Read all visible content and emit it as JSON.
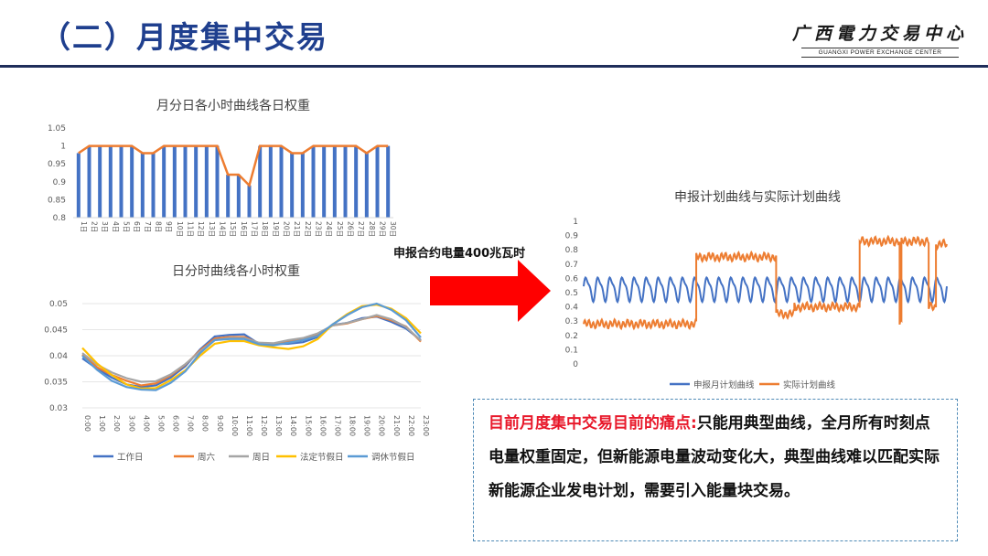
{
  "header": {
    "title": "（二）月度集中交易",
    "logo_cn": "广西電力交易中心",
    "logo_en": "GUANGXI POWER EXCHANGE CENTER"
  },
  "arrow_label": "申报合约电量400兆瓦时",
  "callout": {
    "highlight": "目前月度集中交易目前的痛点:",
    "body": "只能用典型曲线，全月所有时刻点电量权重固定，但新能源电量波动变化大，典型曲线难以匹配实际新能源企业发电计划，需要引入能量块交易。"
  },
  "colors": {
    "blue": "#4472c4",
    "orange": "#ed7d31",
    "gray": "#a5a5a5",
    "yellow": "#ffc000",
    "lightblue": "#5b9bd5",
    "red": "#ff0000",
    "title_blue": "#1f3f8e"
  },
  "chart_data": [
    {
      "type": "bar",
      "title": "月分日各小时曲线各日权重",
      "categories": [
        "1日",
        "2日",
        "3日",
        "4日",
        "5日",
        "6日",
        "7日",
        "8日",
        "9日",
        "10日",
        "11日",
        "12日",
        "13日",
        "14日",
        "15日",
        "16日",
        "17日",
        "18日",
        "19日",
        "20日",
        "21日",
        "22日",
        "23日",
        "24日",
        "25日",
        "26日",
        "27日",
        "28日",
        "29日",
        "30日"
      ],
      "values": [
        0.98,
        1,
        1,
        1,
        1,
        1,
        0.98,
        0.98,
        1,
        1,
        1,
        1,
        1,
        1,
        0.92,
        0.92,
        0.89,
        1,
        1,
        1,
        0.98,
        0.98,
        1,
        1,
        1,
        1,
        1,
        0.98,
        1,
        1
      ],
      "line_overlay": true,
      "ylim": [
        0.8,
        1.05
      ],
      "yticks": [
        "0.8",
        "0.85",
        "0.9",
        "0.95",
        "1",
        "1.05"
      ]
    },
    {
      "type": "line",
      "title": "日分时曲线各小时权重",
      "x": [
        "0:00",
        "1:00",
        "2:00",
        "3:00",
        "4:00",
        "5:00",
        "6:00",
        "7:00",
        "8:00",
        "9:00",
        "10:00",
        "11:00",
        "12:00",
        "13:00",
        "14:00",
        "15:00",
        "16:00",
        "17:00",
        "18:00",
        "19:00",
        "20:00",
        "21:00",
        "22:00",
        "23:00"
      ],
      "ylim": [
        0.03,
        0.05
      ],
      "yticks": [
        "0.03",
        "0.035",
        "0.04",
        "0.045",
        "0.05"
      ],
      "legend": "bottom",
      "series": [
        {
          "name": "工作日",
          "color": "#4472c4",
          "values": [
            0.0395,
            0.0375,
            0.0358,
            0.0345,
            0.034,
            0.0343,
            0.0358,
            0.038,
            0.0412,
            0.0437,
            0.044,
            0.0441,
            0.0423,
            0.0422,
            0.0423,
            0.0426,
            0.0436,
            0.0459,
            0.0463,
            0.0472,
            0.0475,
            0.0465,
            0.0452,
            0.043
          ]
        },
        {
          "name": "周六",
          "color": "#ed7d31",
          "values": [
            0.0402,
            0.0378,
            0.0363,
            0.0352,
            0.0343,
            0.0347,
            0.0362,
            0.0383,
            0.041,
            0.0433,
            0.0436,
            0.0436,
            0.0424,
            0.0423,
            0.0428,
            0.0432,
            0.044,
            0.0458,
            0.0462,
            0.047,
            0.0476,
            0.0468,
            0.0456,
            0.0427
          ]
        },
        {
          "name": "周日",
          "color": "#a5a5a5",
          "values": [
            0.0405,
            0.0383,
            0.0368,
            0.0357,
            0.035,
            0.0351,
            0.0364,
            0.0384,
            0.0408,
            0.043,
            0.0434,
            0.0434,
            0.0425,
            0.0424,
            0.043,
            0.0434,
            0.0443,
            0.0458,
            0.0463,
            0.047,
            0.0478,
            0.047,
            0.0455,
            0.0429
          ]
        },
        {
          "name": "法定节假日",
          "color": "#ffc000",
          "values": [
            0.0415,
            0.0385,
            0.0363,
            0.0345,
            0.0337,
            0.0338,
            0.0353,
            0.0372,
            0.04,
            0.0423,
            0.0428,
            0.0428,
            0.042,
            0.0416,
            0.0413,
            0.0418,
            0.0432,
            0.046,
            0.048,
            0.0495,
            0.0498,
            0.049,
            0.0472,
            0.0443
          ]
        },
        {
          "name": "调休节假日",
          "color": "#5b9bd5",
          "values": [
            0.04,
            0.0373,
            0.0352,
            0.034,
            0.0335,
            0.0334,
            0.0348,
            0.037,
            0.0405,
            0.043,
            0.0432,
            0.0432,
            0.0422,
            0.042,
            0.0425,
            0.043,
            0.0438,
            0.046,
            0.0478,
            0.0493,
            0.05,
            0.0488,
            0.0468,
            0.0435
          ]
        }
      ]
    },
    {
      "type": "line",
      "title": "申报计划曲线与实际计划曲线",
      "ylim": [
        0,
        1
      ],
      "yticks": [
        "0",
        "0.1",
        "0.2",
        "0.3",
        "0.4",
        "0.5",
        "0.6",
        "0.7",
        "0.8",
        "0.9",
        "1"
      ],
      "legend": "bottom",
      "series": [
        {
          "name": "申报月计划曲线",
          "color": "#4472c4",
          "pattern": "daily-periodic",
          "min": 0.43,
          "max": 0.63,
          "periods": 30
        },
        {
          "name": "实际计划曲线",
          "color": "#ed7d31",
          "segments": [
            {
              "from": 0.0,
              "to": 0.31,
              "level": 0.28
            },
            {
              "from": 0.31,
              "to": 0.53,
              "level": 0.75
            },
            {
              "from": 0.53,
              "to": 0.58,
              "level": 0.35
            },
            {
              "from": 0.58,
              "to": 0.76,
              "level": 0.4
            },
            {
              "from": 0.76,
              "to": 0.87,
              "level": 0.86
            },
            {
              "from": 0.87,
              "to": 0.875,
              "level": 0.28
            },
            {
              "from": 0.875,
              "to": 0.95,
              "level": 0.86
            },
            {
              "from": 0.95,
              "to": 0.97,
              "level": 0.4
            },
            {
              "from": 0.97,
              "to": 1.0,
              "level": 0.84
            }
          ]
        }
      ]
    }
  ]
}
